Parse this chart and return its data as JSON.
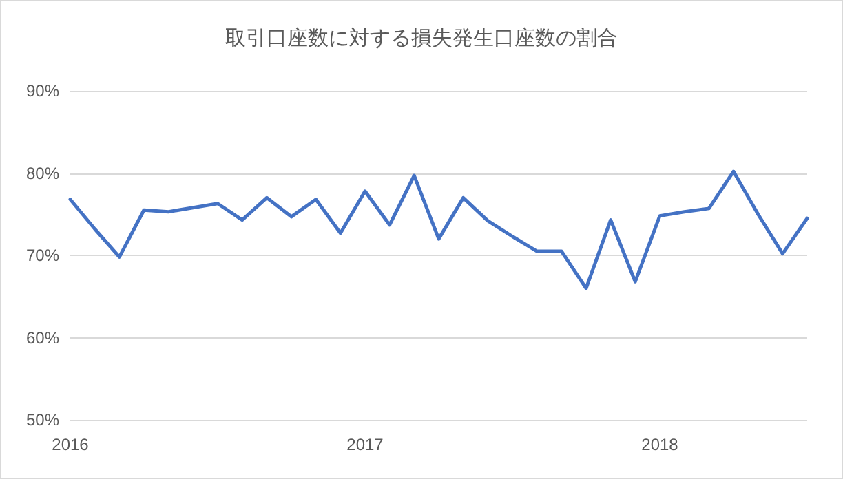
{
  "chart_data": {
    "type": "line",
    "title": "取引口座数に対する損失発生口座数の割合",
    "categories": [
      "2016",
      null,
      null,
      null,
      null,
      null,
      null,
      null,
      null,
      null,
      null,
      null,
      "2017",
      null,
      null,
      null,
      null,
      null,
      null,
      null,
      null,
      null,
      null,
      null,
      "2018",
      null,
      null,
      null,
      null,
      null,
      null
    ],
    "series": [
      {
        "color": "#4472c4",
        "values": [
          76.8,
          73.2,
          69.8,
          75.5,
          75.3,
          75.8,
          76.3,
          74.3,
          77,
          74.7,
          76.8,
          72.7,
          77.8,
          73.7,
          79.7,
          72,
          77,
          74.2,
          72.3,
          70.5,
          70.5,
          66,
          74.3,
          66.8,
          74.8,
          75.3,
          75.7,
          80.2,
          75,
          70.2,
          74.5
        ]
      }
    ],
    "ylim": [
      50,
      90
    ],
    "yticks": [
      {
        "value": 50,
        "label": "50%"
      },
      {
        "value": 60,
        "label": "60%"
      },
      {
        "value": 70,
        "label": "70%"
      },
      {
        "value": 80,
        "label": "80%"
      },
      {
        "value": 90,
        "label": "90%"
      }
    ],
    "grid": "y",
    "marker": "none",
    "line_style": "solid"
  }
}
